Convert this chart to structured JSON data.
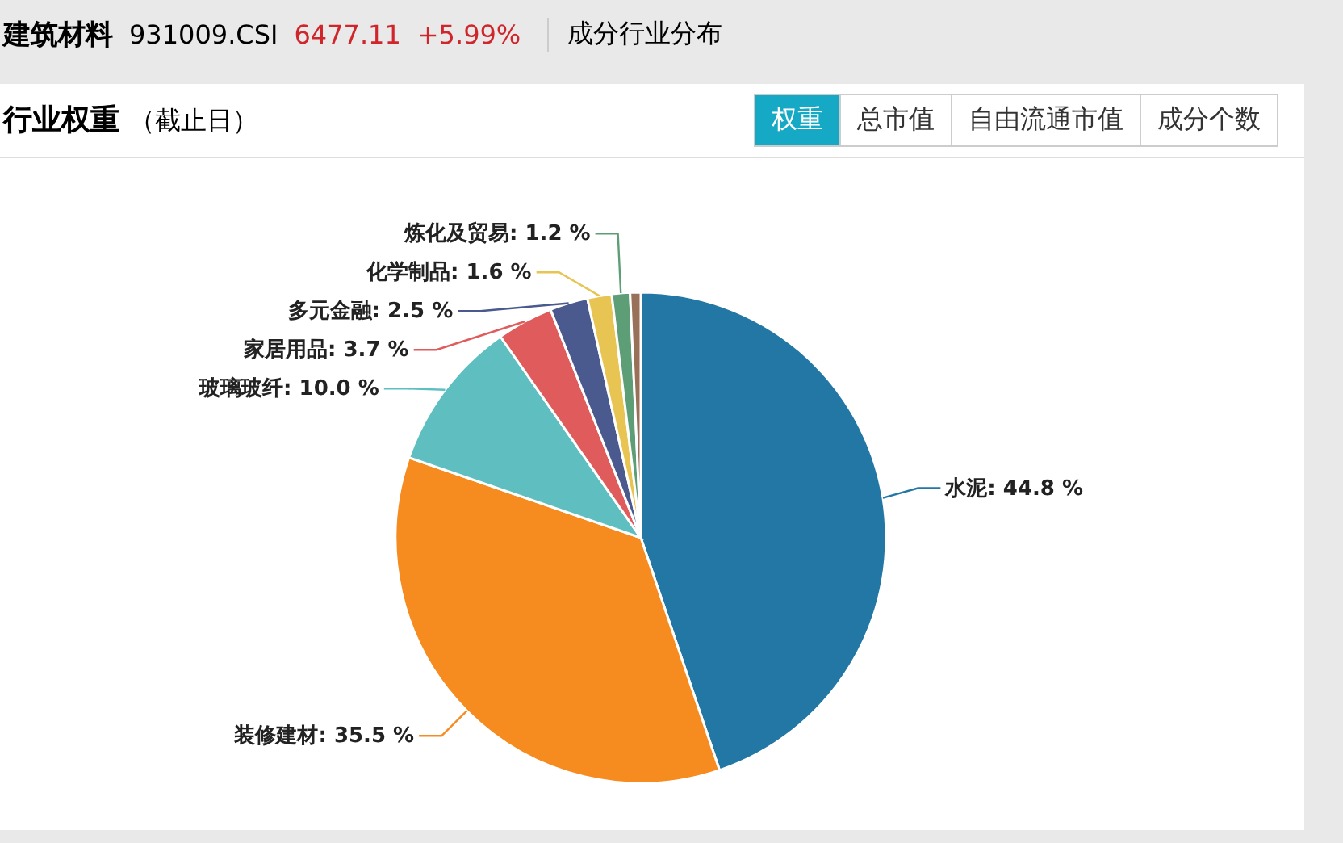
{
  "chart_data": {
    "type": "pie",
    "title": "行业权重",
    "subtitle": "（截止日）",
    "annotations": [
      "建筑材料",
      "931009.CSI",
      "6477.11",
      "+5.99%",
      "成分行业分布",
      "权重",
      "总市值",
      "自由流通市值",
      "成分个数"
    ],
    "categories": [
      "水泥",
      "装修建材",
      "玻璃玻纤",
      "家居用品",
      "多元金融",
      "化学制品",
      "炼化及贸易",
      null
    ],
    "values": [
      44.8,
      35.5,
      10.0,
      3.7,
      2.5,
      1.6,
      1.2,
      0.7
    ],
    "colors": [
      "#2377a4",
      "#f68b1f",
      "#5fbfc0",
      "#e05c5c",
      "#4b5a8e",
      "#e8c452",
      "#5e9e76",
      "#987158"
    ],
    "value_labels": [
      "44.8 %",
      "35.5 %",
      "10.0 %",
      "3.7 %",
      "2.5 %",
      "1.6 %",
      "1.2 %",
      null
    ]
  }
}
